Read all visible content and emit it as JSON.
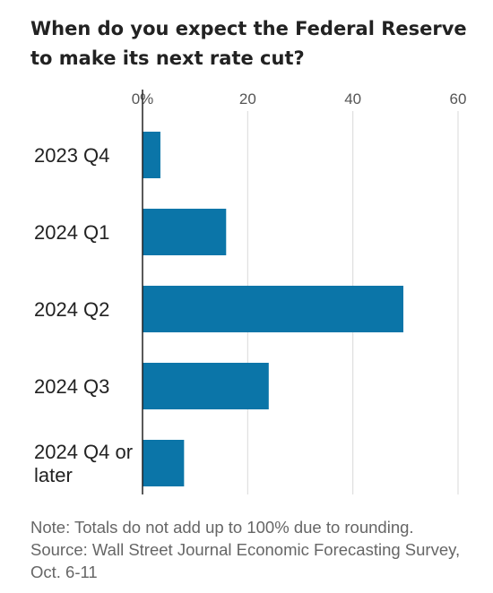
{
  "chart_data": {
    "type": "bar",
    "orientation": "horizontal",
    "title": "When do you expect the Federal Reserve to make its next rate cut?",
    "categories": [
      [
        "2023 Q4"
      ],
      [
        "2024 Q1"
      ],
      [
        "2024 Q2"
      ],
      [
        "2024 Q3"
      ],
      [
        "2024 Q4 or",
        "later"
      ]
    ],
    "values": [
      3.4,
      15.9,
      49.6,
      24.0,
      7.9
    ],
    "xlim": [
      0,
      60
    ],
    "xticks": [
      "0%",
      "20",
      "40",
      "60"
    ],
    "xtick_values": [
      0,
      20,
      40,
      60
    ],
    "xaxis_position": "top",
    "grid": true,
    "bar_color": "#0b75a8",
    "grid_color": "#d9d9d9"
  },
  "footer": {
    "note": "Note: Totals do not add up to 100% due to rounding.",
    "source": "Source: Wall Street Journal Economic Forecasting Survey, Oct. 6-11"
  }
}
